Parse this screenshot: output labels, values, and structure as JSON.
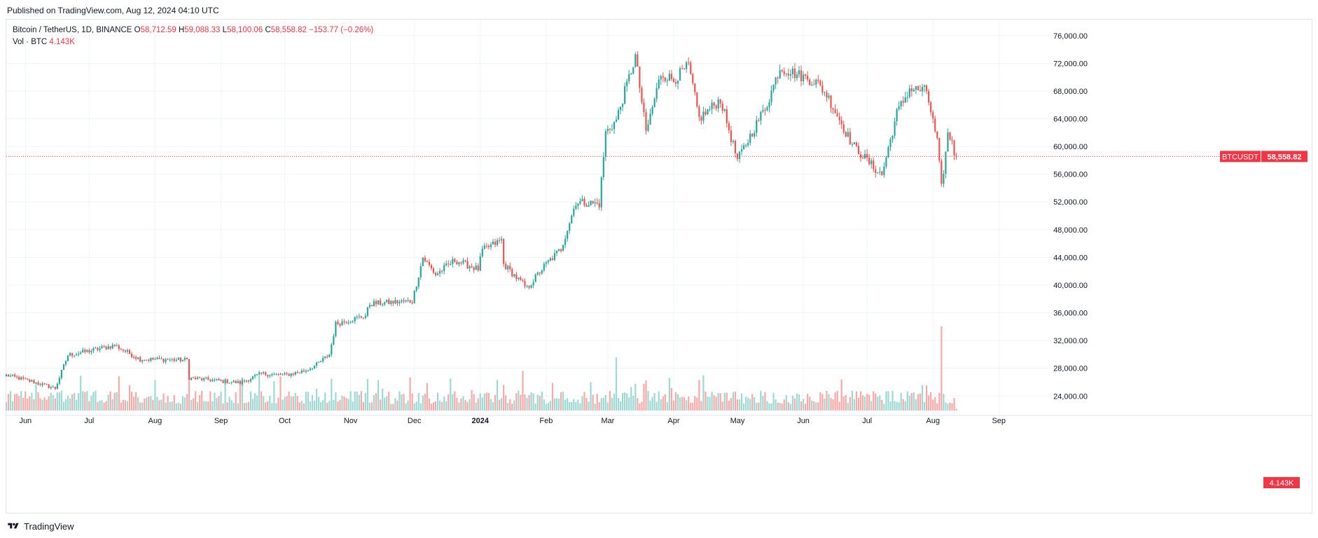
{
  "header": {
    "published": "Published on TradingView.com, Aug 12, 2024 04:10 UTC"
  },
  "legend": {
    "symbol": "Bitcoin / TetherUS, 1D, BINANCE",
    "o_label": "O",
    "o_value": "58,712.59",
    "h_label": "H",
    "h_value": "59,088.33",
    "l_label": "L",
    "l_value": "58,100.06",
    "c_label": "C",
    "c_value": "58,558.82",
    "change": "−153.77 (−0.26%)",
    "vol_label": "Vol · BTC",
    "vol_value": "4.143K"
  },
  "price_tag": {
    "symbol": "BTCUSDT",
    "value": "58,558.82"
  },
  "volume_tag": {
    "value": "4.143K"
  },
  "footer": {
    "brand": "TradingView"
  },
  "colors": {
    "up": "#26a69a",
    "down": "#ef5350",
    "vol_up": "#9ed8d2",
    "vol_down": "#f7a9a7",
    "grid": "#f0f3fa",
    "axis_text": "#131722",
    "price_line": "#f23645"
  },
  "chart_data": {
    "type": "candlestick",
    "symbol": "Bitcoin / TetherUS",
    "interval": "1D",
    "exchange": "BINANCE",
    "y_axis": {
      "range": [
        21500,
        78300
      ],
      "ticks": [
        24000,
        28000,
        32000,
        36000,
        40000,
        44000,
        48000,
        52000,
        56000,
        60000,
        64000,
        68000,
        72000,
        76000
      ],
      "tick_labels": [
        "24,000.00",
        "28,000.00",
        "32,000.00",
        "36,000.00",
        "40,000.00",
        "44,000.00",
        "48,000.00",
        "52,000.00",
        "56,000.00",
        "60,000.00",
        "64,000.00",
        "68,000.00",
        "72,000.00",
        "76,000.00"
      ],
      "side": "right"
    },
    "x_axis": {
      "start": "2023-05-23",
      "end": "2024-09-22",
      "ticks": [
        {
          "date": "2023-06-01",
          "label": "Jun",
          "bold": false
        },
        {
          "date": "2023-07-01",
          "label": "Jul",
          "bold": false
        },
        {
          "date": "2023-08-01",
          "label": "Aug",
          "bold": false
        },
        {
          "date": "2023-09-01",
          "label": "Sep",
          "bold": false
        },
        {
          "date": "2023-10-01",
          "label": "Oct",
          "bold": false
        },
        {
          "date": "2023-11-01",
          "label": "Nov",
          "bold": false
        },
        {
          "date": "2023-12-01",
          "label": "Dec",
          "bold": false
        },
        {
          "date": "2024-01-01",
          "label": "2024",
          "bold": true
        },
        {
          "date": "2024-02-01",
          "label": "Feb",
          "bold": false
        },
        {
          "date": "2024-03-01",
          "label": "Mar",
          "bold": false
        },
        {
          "date": "2024-04-01",
          "label": "Apr",
          "bold": false
        },
        {
          "date": "2024-05-01",
          "label": "May",
          "bold": false
        },
        {
          "date": "2024-06-01",
          "label": "Jun",
          "bold": false
        },
        {
          "date": "2024-07-01",
          "label": "Jul",
          "bold": false
        },
        {
          "date": "2024-08-01",
          "label": "Aug",
          "bold": false
        },
        {
          "date": "2024-09-01",
          "label": "Sep",
          "bold": false
        }
      ]
    },
    "first_candle": "2023-05-23",
    "last_candle": "2024-08-12",
    "close_anchors": [
      [
        "2023-05-23",
        27000
      ],
      [
        "2023-06-05",
        26000
      ],
      [
        "2023-06-15",
        25100
      ],
      [
        "2023-06-21",
        29900
      ],
      [
        "2023-07-01",
        30500
      ],
      [
        "2023-07-13",
        31300
      ],
      [
        "2023-07-25",
        29300
      ],
      [
        "2023-08-16",
        29200
      ],
      [
        "2023-08-17",
        26600
      ],
      [
        "2023-09-10",
        25900
      ],
      [
        "2023-09-20",
        27200
      ],
      [
        "2023-10-01",
        27000
      ],
      [
        "2023-10-10",
        27600
      ],
      [
        "2023-10-16",
        28500
      ],
      [
        "2023-10-22",
        30000
      ],
      [
        "2023-10-25",
        34400
      ],
      [
        "2023-11-08",
        35600
      ],
      [
        "2023-11-10",
        37300
      ],
      [
        "2023-11-30",
        37700
      ],
      [
        "2023-12-05",
        44000
      ],
      [
        "2023-12-11",
        41500
      ],
      [
        "2023-12-20",
        43600
      ],
      [
        "2023-12-31",
        42300
      ],
      [
        "2024-01-02",
        45000
      ],
      [
        "2024-01-11",
        46500
      ],
      [
        "2024-01-12",
        43000
      ],
      [
        "2024-01-23",
        39500
      ],
      [
        "2024-01-31",
        42700
      ],
      [
        "2024-02-08",
        45200
      ],
      [
        "2024-02-15",
        52000
      ],
      [
        "2024-02-26",
        51700
      ],
      [
        "2024-02-29",
        62000
      ],
      [
        "2024-03-05",
        63800
      ],
      [
        "2024-03-14",
        73000
      ],
      [
        "2024-03-19",
        62000
      ],
      [
        "2024-03-26",
        70500
      ],
      [
        "2024-04-01",
        69600
      ],
      [
        "2024-04-08",
        71600
      ],
      [
        "2024-04-13",
        64000
      ],
      [
        "2024-04-23",
        66800
      ],
      [
        "2024-05-01",
        58000
      ],
      [
        "2024-05-15",
        66200
      ],
      [
        "2024-05-21",
        71400
      ],
      [
        "2024-06-07",
        69300
      ],
      [
        "2024-06-12",
        67500
      ],
      [
        "2024-06-24",
        60300
      ],
      [
        "2024-07-04",
        57000
      ],
      [
        "2024-07-08",
        55900
      ],
      [
        "2024-07-15",
        64800
      ],
      [
        "2024-07-21",
        68300
      ],
      [
        "2024-07-29",
        68000
      ],
      [
        "2024-08-03",
        60600
      ],
      [
        "2024-08-05",
        54000
      ],
      [
        "2024-08-08",
        61700
      ],
      [
        "2024-08-10",
        60900
      ],
      [
        "2024-08-11",
        58712.59
      ],
      [
        "2024-08-12",
        58558.82
      ]
    ],
    "last": {
      "date": "2024-08-12",
      "open": 58712.59,
      "high": 59088.33,
      "low": 58100.06,
      "close": 58558.82,
      "volume": 4143
    },
    "volume_spikes": [
      {
        "date": "2024-03-05",
        "volume": 120000
      },
      {
        "date": "2024-08-05",
        "volume": 190000
      }
    ]
  }
}
